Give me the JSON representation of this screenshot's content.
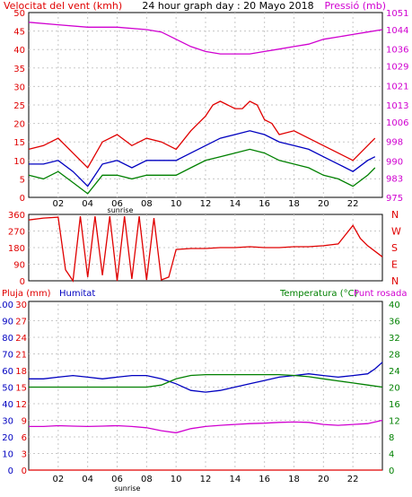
{
  "header": {
    "title": "24 hour graph day : 20 Mayo 2018",
    "wind_label": "Velocitat del vent (kmh)",
    "pressure_label": "Pressió (mb)"
  },
  "panels": {
    "middle": {
      "direction_labels": [
        "N",
        "W",
        "S",
        "E",
        "N"
      ]
    },
    "bottom": {
      "rain_label": "Pluja (mm)",
      "humidity_label": "Humitat",
      "temp_label": "Temperatura (°C)",
      "dew_label": "Punt rosada"
    }
  },
  "x_axis": {
    "tick_labels": [
      "02",
      "04",
      "06",
      "08",
      "10",
      "12",
      "14",
      "16",
      "18",
      "20",
      "22"
    ],
    "sunrise_label": "sunrise"
  },
  "colors": {
    "frame_bg": "#ffffff",
    "plot_bg": "#ffffff",
    "grid": "#c8c8c8",
    "wind_max": "#e00000",
    "wind_avg": "#0000c0",
    "wind_min": "#008000",
    "pressure": "#d000d0",
    "direction": "#e00000",
    "humidity": "#0000c0",
    "temperature": "#008000",
    "dew": "#d000d0",
    "rain": "#e00000",
    "left_axis_text": "#e00000",
    "right_axis_text": "#d000d0",
    "humidity_axis_text": "#0000c0",
    "temp_axis_text": "#008000"
  },
  "chart_data": [
    {
      "type": "line",
      "title": "24 hour graph day : 20 Mayo 2018",
      "xlabel": "",
      "ylabel": "Velocitat del vent (kmh)",
      "y2label": "Pressió (mb)",
      "x_range": [
        0,
        24
      ],
      "ylim": [
        0,
        50
      ],
      "y_ticks": [
        0,
        5,
        10,
        15,
        20,
        25,
        30,
        35,
        40,
        45,
        50
      ],
      "y2lim": [
        975,
        1051
      ],
      "y2_ticks": [
        975,
        983,
        990,
        998,
        1006,
        1013,
        1021,
        1029,
        1036,
        1044,
        1051
      ],
      "grid": true,
      "series": [
        {
          "name": "Velocitat del vent (kmh)",
          "role": "gust",
          "color": "#e00000",
          "x": [
            0,
            1,
            2,
            3,
            4,
            5,
            6,
            7,
            8,
            9,
            10,
            11,
            11.5,
            12,
            12.5,
            13,
            13.5,
            14,
            14.5,
            15,
            15.5,
            16,
            16.5,
            17,
            18,
            19,
            20,
            21,
            22,
            23,
            23.5
          ],
          "values": [
            13,
            14,
            16,
            12,
            8,
            15,
            17,
            14,
            16,
            15,
            13,
            18,
            20,
            22,
            25,
            26,
            25,
            24,
            24,
            26,
            25,
            21,
            20,
            17,
            18,
            16,
            14,
            12,
            10,
            14,
            16
          ]
        },
        {
          "name": "",
          "role": "avg",
          "color": "#0000c0",
          "x": [
            0,
            1,
            2,
            3,
            4,
            5,
            6,
            7,
            8,
            9,
            10,
            11,
            12,
            13,
            14,
            15,
            16,
            17,
            18,
            19,
            20,
            21,
            22,
            23,
            23.5
          ],
          "values": [
            9,
            9,
            10,
            7,
            3,
            9,
            10,
            8,
            10,
            10,
            10,
            12,
            14,
            16,
            17,
            18,
            17,
            15,
            14,
            13,
            11,
            9,
            7,
            10,
            11
          ]
        },
        {
          "name": "",
          "role": "min",
          "color": "#008000",
          "x": [
            0,
            1,
            2,
            3,
            4,
            5,
            6,
            7,
            8,
            9,
            10,
            11,
            12,
            13,
            14,
            15,
            16,
            17,
            18,
            19,
            20,
            21,
            22,
            23,
            23.5
          ],
          "values": [
            6,
            5,
            7,
            4,
            1,
            6,
            6,
            5,
            6,
            6,
            6,
            8,
            10,
            11,
            12,
            13,
            12,
            10,
            9,
            8,
            6,
            5,
            3,
            6,
            8
          ]
        },
        {
          "name": "Pressió (mb)",
          "axis": "right",
          "color": "#d000d0",
          "x": [
            0,
            2,
            4,
            6,
            8,
            9,
            10,
            11,
            12,
            13,
            14,
            15,
            16,
            17,
            18,
            19,
            20,
            21,
            22,
            23,
            24
          ],
          "values": [
            1047,
            1046,
            1045,
            1045,
            1044,
            1043,
            1040,
            1037,
            1035,
            1034,
            1034,
            1034,
            1035,
            1036,
            1037,
            1038,
            1040,
            1041,
            1042,
            1043,
            1044
          ]
        }
      ]
    },
    {
      "type": "line",
      "ylabel": "",
      "x_range": [
        0,
        24
      ],
      "ylim": [
        0,
        360
      ],
      "y_ticks": [
        0,
        90,
        180,
        270,
        360
      ],
      "grid": true,
      "series": [
        {
          "name": "",
          "color": "#e00000",
          "x": [
            0,
            1,
            2,
            2.5,
            3,
            3.5,
            4,
            4.5,
            5,
            5.5,
            6,
            6.5,
            7,
            7.5,
            8,
            8.5,
            9,
            9.5,
            10,
            11,
            12,
            13,
            14,
            15,
            16,
            17,
            18,
            19,
            20,
            21,
            22,
            22.5,
            23,
            24
          ],
          "values": [
            330,
            340,
            345,
            60,
            0,
            350,
            20,
            350,
            30,
            350,
            0,
            350,
            10,
            350,
            5,
            340,
            5,
            20,
            170,
            175,
            175,
            180,
            180,
            185,
            180,
            180,
            185,
            185,
            190,
            200,
            300,
            230,
            190,
            130
          ]
        }
      ]
    },
    {
      "type": "line",
      "ylabel": "Pluja (mm)",
      "x_range": [
        0,
        24
      ],
      "ylim": [
        0,
        30
      ],
      "y_ticks": [
        0,
        3,
        6,
        9,
        12,
        15,
        18,
        21,
        24,
        27,
        30
      ],
      "humidity_lim": [
        0,
        100
      ],
      "humidity_ticks": [
        0,
        10,
        20,
        30,
        40,
        50,
        60,
        70,
        80,
        90,
        100
      ],
      "temp_lim": [
        0,
        40
      ],
      "temp_ticks": [
        0,
        4,
        8,
        12,
        16,
        20,
        24,
        28,
        32,
        36,
        40
      ],
      "grid": true,
      "series": [
        {
          "name": "Pluja (mm)",
          "color": "#e00000",
          "x": [
            0,
            24
          ],
          "values": [
            0,
            0
          ]
        },
        {
          "name": "Humitat",
          "axis": "humidity",
          "color": "#0000c0",
          "x": [
            0,
            1,
            2,
            3,
            4,
            5,
            6,
            7,
            8,
            9,
            10,
            11,
            12,
            13,
            14,
            15,
            16,
            17,
            18,
            19,
            20,
            21,
            22,
            23,
            23.5,
            24
          ],
          "values": [
            55,
            55,
            56,
            57,
            56,
            55,
            56,
            57,
            57,
            55,
            52,
            48,
            47,
            48,
            50,
            52,
            54,
            56,
            57,
            58,
            57,
            56,
            57,
            58,
            61,
            65
          ]
        },
        {
          "name": "Temperatura (°C)",
          "axis": "temp",
          "color": "#008000",
          "x": [
            0,
            1,
            2,
            3,
            4,
            5,
            6,
            7,
            8,
            9,
            10,
            11,
            12,
            13,
            14,
            15,
            16,
            17,
            18,
            19,
            20,
            21,
            22,
            23,
            24
          ],
          "values": [
            20.0,
            20.0,
            20.0,
            20.0,
            20.0,
            20.0,
            20.0,
            20.0,
            20.0,
            20.5,
            22.0,
            22.8,
            23.0,
            23.0,
            23.0,
            23.0,
            23.0,
            23.0,
            22.8,
            22.5,
            22.0,
            21.5,
            21.0,
            20.5,
            20.0
          ]
        },
        {
          "name": "Punt rosada",
          "axis": "temp",
          "color": "#d000d0",
          "x": [
            0,
            1,
            2,
            3,
            4,
            5,
            6,
            7,
            8,
            9,
            10,
            11,
            12,
            13,
            14,
            15,
            16,
            17,
            18,
            19,
            20,
            21,
            22,
            23,
            24
          ],
          "values": [
            10.5,
            10.5,
            10.7,
            10.6,
            10.5,
            10.6,
            10.7,
            10.5,
            10.2,
            9.5,
            9.0,
            10.0,
            10.5,
            10.8,
            11.0,
            11.2,
            11.3,
            11.5,
            11.6,
            11.5,
            11.0,
            10.8,
            11.0,
            11.2,
            12.0
          ]
        }
      ]
    }
  ]
}
